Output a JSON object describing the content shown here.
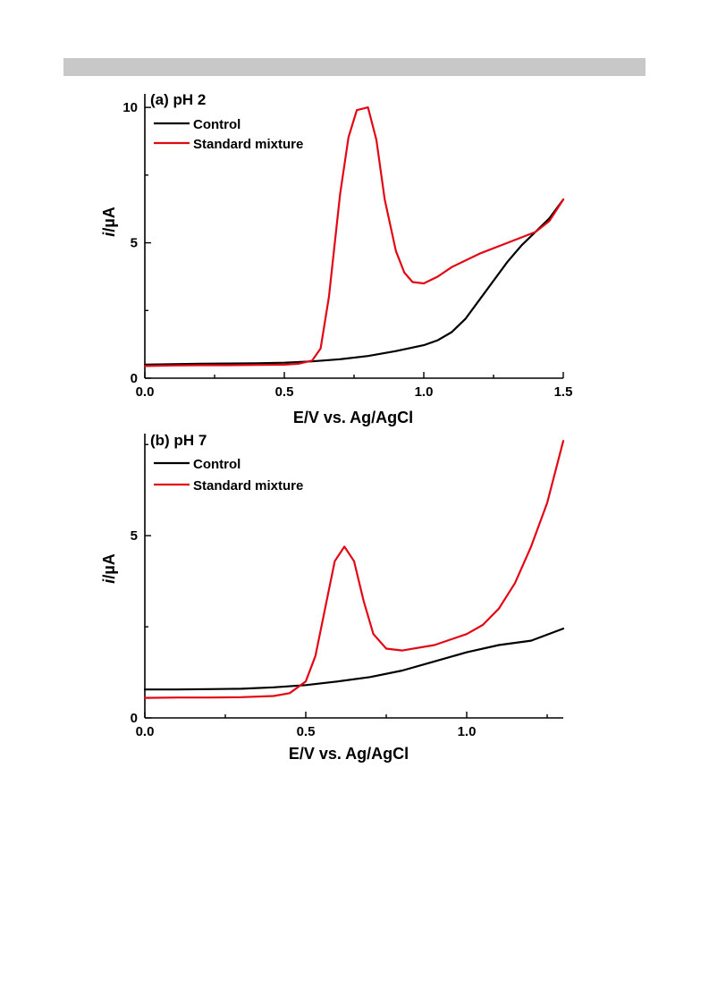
{
  "colors": {
    "header_bar": "#c8c8c8",
    "control": "#000000",
    "standard": "#e30613"
  },
  "chart_data": [
    {
      "type": "line",
      "panel_label": "(a) pH 2",
      "xlabel": "E/V vs. Ag/AgCl",
      "ylabel": "i/µA",
      "xlim": [
        0.0,
        1.5
      ],
      "ylim": [
        0,
        10.5
      ],
      "xticks": [
        0.0,
        0.5,
        1.0,
        1.5
      ],
      "xtick_labels": [
        "0.0",
        "0.5",
        "1.0",
        "1.5"
      ],
      "yticks": [
        0,
        5,
        10
      ],
      "ytick_labels": [
        "0",
        "5",
        "10"
      ],
      "legend_position": "top-left",
      "grid": false,
      "series": [
        {
          "name": "Control",
          "color": "#000000",
          "x": [
            0.0,
            0.1,
            0.2,
            0.3,
            0.4,
            0.5,
            0.6,
            0.7,
            0.8,
            0.9,
            1.0,
            1.05,
            1.1,
            1.15,
            1.2,
            1.25,
            1.3,
            1.35,
            1.4,
            1.45,
            1.5
          ],
          "y": [
            0.5,
            0.52,
            0.53,
            0.54,
            0.55,
            0.57,
            0.62,
            0.7,
            0.82,
            1.0,
            1.22,
            1.4,
            1.7,
            2.2,
            2.9,
            3.6,
            4.3,
            4.9,
            5.4,
            5.9,
            6.6
          ]
        },
        {
          "name": "Standard mixture",
          "color": "#e30613",
          "x": [
            0.0,
            0.1,
            0.2,
            0.3,
            0.4,
            0.5,
            0.55,
            0.6,
            0.63,
            0.66,
            0.7,
            0.73,
            0.76,
            0.8,
            0.83,
            0.86,
            0.9,
            0.93,
            0.96,
            1.0,
            1.05,
            1.1,
            1.2,
            1.3,
            1.4,
            1.45,
            1.5
          ],
          "y": [
            0.45,
            0.47,
            0.48,
            0.48,
            0.49,
            0.5,
            0.53,
            0.65,
            1.1,
            3.0,
            6.8,
            8.9,
            9.9,
            10.0,
            8.8,
            6.6,
            4.7,
            3.9,
            3.55,
            3.5,
            3.75,
            4.1,
            4.6,
            5.0,
            5.4,
            5.8,
            6.6
          ]
        }
      ]
    },
    {
      "type": "line",
      "panel_label": "(b) pH 7",
      "xlabel": "E/V vs. Ag/AgCl",
      "ylabel": "i/µA",
      "xlim": [
        0.0,
        1.3
      ],
      "ylim": [
        0,
        7.8
      ],
      "xticks": [
        0.0,
        0.5,
        1.0
      ],
      "xtick_labels": [
        "0.0",
        "0.5",
        "1.0"
      ],
      "yticks": [
        0,
        5
      ],
      "ytick_labels": [
        "0",
        "5"
      ],
      "legend_position": "top-left",
      "grid": false,
      "series": [
        {
          "name": "Control",
          "color": "#000000",
          "x": [
            0.0,
            0.1,
            0.2,
            0.3,
            0.4,
            0.5,
            0.6,
            0.7,
            0.8,
            0.9,
            1.0,
            1.1,
            1.2,
            1.3
          ],
          "y": [
            0.78,
            0.78,
            0.79,
            0.8,
            0.84,
            0.9,
            1.0,
            1.12,
            1.3,
            1.55,
            1.8,
            2.0,
            2.12,
            2.45
          ]
        },
        {
          "name": "Standard mixture",
          "color": "#e30613",
          "x": [
            0.0,
            0.1,
            0.2,
            0.3,
            0.4,
            0.45,
            0.5,
            0.53,
            0.56,
            0.59,
            0.62,
            0.65,
            0.68,
            0.71,
            0.75,
            0.8,
            0.9,
            1.0,
            1.05,
            1.1,
            1.15,
            1.2,
            1.25,
            1.3
          ],
          "y": [
            0.55,
            0.56,
            0.56,
            0.57,
            0.6,
            0.68,
            1.0,
            1.7,
            3.0,
            4.3,
            4.7,
            4.3,
            3.2,
            2.3,
            1.9,
            1.85,
            2.0,
            2.3,
            2.55,
            3.0,
            3.7,
            4.7,
            5.9,
            7.6
          ]
        }
      ]
    }
  ]
}
